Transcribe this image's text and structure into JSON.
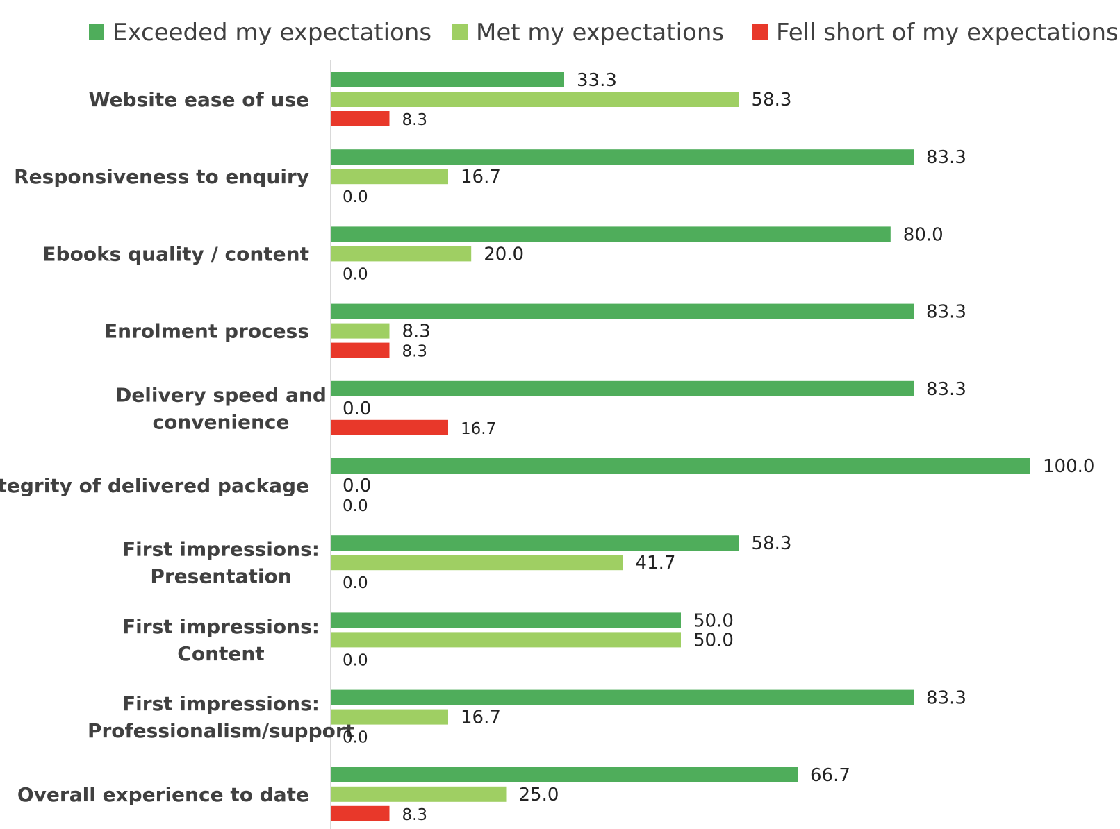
{
  "chart_data": {
    "type": "bar",
    "orientation": "horizontal",
    "categories": [
      [
        "Website ease of use"
      ],
      [
        "Responsiveness to enquiry"
      ],
      [
        "Ebooks quality / content"
      ],
      [
        "Enrolment process"
      ],
      [
        "Delivery speed and",
        "convenience"
      ],
      [
        "Integrity of delivered package"
      ],
      [
        "First impressions:",
        "Presentation"
      ],
      [
        "First impressions:",
        "Content"
      ],
      [
        "First impressions:",
        "Professionalism/support"
      ],
      [
        "Overall experience to date"
      ]
    ],
    "series": [
      {
        "name": "Exceeded my expectations",
        "color": "#4FAD5B",
        "values": [
          33.3,
          83.3,
          80.0,
          83.3,
          83.3,
          100.0,
          58.3,
          50.0,
          83.3,
          66.7
        ]
      },
      {
        "name": "Met my expectations",
        "color": "#9FCF63",
        "values": [
          58.3,
          16.7,
          20.0,
          8.3,
          0.0,
          0.0,
          41.7,
          50.0,
          16.7,
          25.0
        ]
      },
      {
        "name": "Fell short of my expectations",
        "color": "#E8382A",
        "values": [
          8.3,
          0.0,
          0.0,
          8.3,
          16.7,
          0.0,
          0.0,
          0.0,
          0.0,
          8.3
        ]
      }
    ],
    "data_labels": [
      [
        "33.3",
        "58.3",
        "8.3"
      ],
      [
        "83.3",
        "16.7",
        "0.0"
      ],
      [
        "80.0",
        "20.0",
        "0.0"
      ],
      [
        "83.3",
        "8.3",
        "8.3"
      ],
      [
        "83.3",
        "0.0",
        "16.7"
      ],
      [
        "100.0",
        "0.0",
        "0.0"
      ],
      [
        "58.3",
        "41.7",
        "0.0"
      ],
      [
        "50.0",
        "50.0",
        "0.0"
      ],
      [
        "83.3",
        "16.7",
        "0.0"
      ],
      [
        "66.7",
        "25.0",
        "8.3"
      ]
    ],
    "xlim": [
      0,
      100
    ],
    "grid": false,
    "legend_position": "top"
  }
}
